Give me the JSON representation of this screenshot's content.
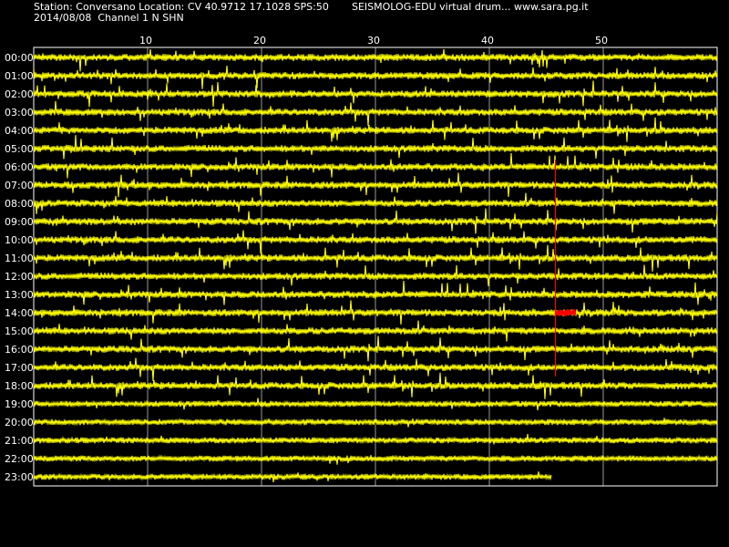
{
  "header": {
    "station_line": "Station: Conversano Location: CV 40.9712 17.1028 SPS:50",
    "date_line": "2014/08/08  Channel 1 N SHN",
    "brand_line": "SEISMOLOG-EDU virtual drum... www.sara.pg.it"
  },
  "chart_data": {
    "type": "line",
    "title": "",
    "xlabel": "",
    "ylabel": "",
    "x_ticks": [
      10,
      20,
      30,
      40,
      50
    ],
    "xlim": [
      0,
      60
    ],
    "grid": true,
    "hour_labels": [
      "00:00",
      "01:00",
      "02:00",
      "03:00",
      "04:00",
      "05:00",
      "06:00",
      "07:00",
      "08:00",
      "09:00",
      "10:00",
      "11:00",
      "12:00",
      "13:00",
      "14:00",
      "15:00",
      "16:00",
      "17:00",
      "18:00",
      "19:00",
      "20:00",
      "21:00",
      "22:00",
      "23:00"
    ],
    "last_trace_end_minute": 45.5,
    "colors": {
      "trace": "#ffff00",
      "event": "#ff0000",
      "grid": "#ffffff",
      "background": "#000000"
    },
    "event": {
      "minute": 45.8,
      "marker_start_row": "06:00",
      "marker_end_row": "17:30",
      "burst_row": "14:00",
      "burst_start_minute": 45.8,
      "burst_end_minute": 47.6
    }
  }
}
